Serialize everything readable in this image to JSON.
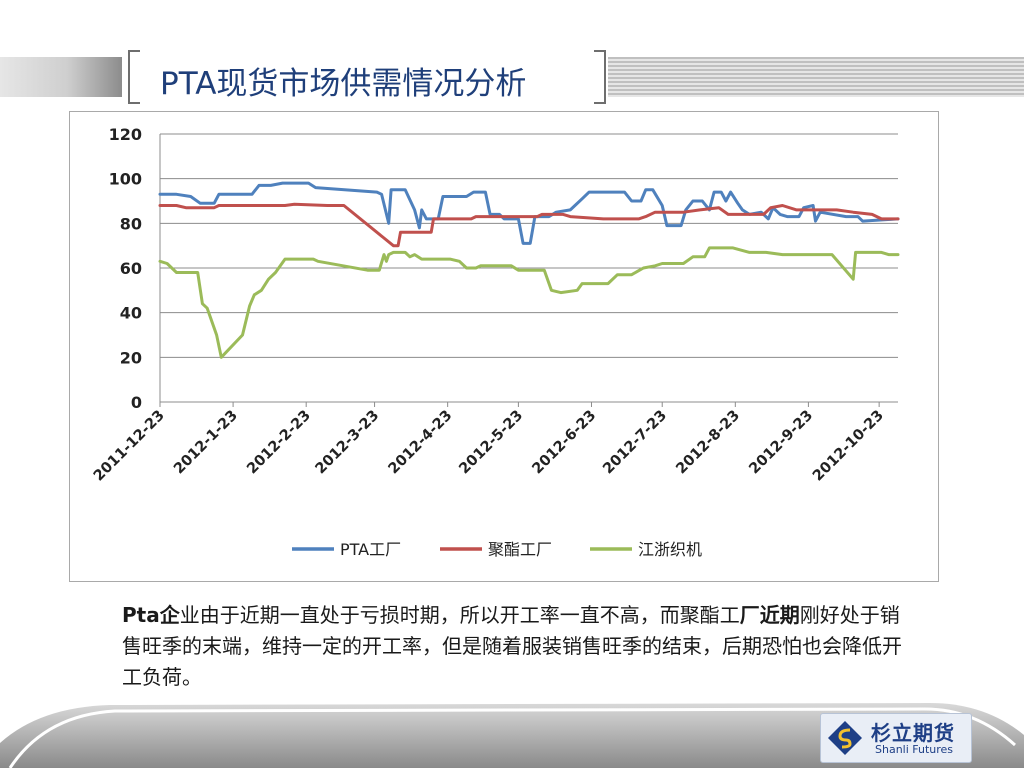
{
  "slide": {
    "title": "PTA现货市场供需情况分析",
    "paragraph": {
      "bold1": "Pta企",
      "text1": "业由于近期一直处于亏损时期，所以开工率一直不高，而聚酯工",
      "bold2": "厂近期",
      "text2": "刚好处于销售旺季的末端，维持一定的开工率，但是随着服装销售旺季的结束，后期恐怕也会降低开工负荷。"
    },
    "logo": {
      "cn": "杉立期货",
      "en": "Shanli Futures"
    }
  },
  "colors": {
    "pta": "#4f81bd",
    "polyester": "#c0504d",
    "weaving": "#9bbb59",
    "title": "#1f3f7a"
  },
  "chart_data": {
    "type": "line",
    "title": "",
    "xlabel": "",
    "ylabel": "",
    "ylim": [
      0,
      120
    ],
    "yticks": [
      0,
      20,
      40,
      60,
      80,
      100,
      120
    ],
    "xlim": [
      "2011-12-23",
      "2012-10-31"
    ],
    "xtick_labels": [
      "2011-12-23",
      "2012-1-23",
      "2012-2-23",
      "2012-3-23",
      "2012-4-23",
      "2012-5-23",
      "2012-6-23",
      "2012-7-23",
      "2012-8-23",
      "2012-9-23",
      "2012-10-23"
    ],
    "grid": "horizontal",
    "legend": "bottom",
    "series": [
      {
        "name": "PTA工厂",
        "color": "#4f81bd",
        "points": [
          [
            "2011-12-23",
            93
          ],
          [
            "2011-12-30",
            93
          ],
          [
            "2012-01-05",
            92
          ],
          [
            "2012-01-09",
            89
          ],
          [
            "2012-01-15",
            89
          ],
          [
            "2012-01-17",
            93
          ],
          [
            "2012-01-31",
            93
          ],
          [
            "2012-02-03",
            97
          ],
          [
            "2012-02-08",
            97
          ],
          [
            "2012-02-13",
            98
          ],
          [
            "2012-02-24",
            98
          ],
          [
            "2012-02-27",
            96
          ],
          [
            "2012-03-24",
            94
          ],
          [
            "2012-03-26",
            93
          ],
          [
            "2012-03-29",
            80
          ],
          [
            "2012-03-30",
            95
          ],
          [
            "2012-04-05",
            95
          ],
          [
            "2012-04-09",
            86
          ],
          [
            "2012-04-11",
            78
          ],
          [
            "2012-04-12",
            86
          ],
          [
            "2012-04-14",
            82
          ],
          [
            "2012-04-19",
            82
          ],
          [
            "2012-04-21",
            92
          ],
          [
            "2012-05-01",
            92
          ],
          [
            "2012-05-04",
            94
          ],
          [
            "2012-05-09",
            94
          ],
          [
            "2012-05-11",
            84
          ],
          [
            "2012-05-15",
            84
          ],
          [
            "2012-05-17",
            82
          ],
          [
            "2012-05-23",
            82
          ],
          [
            "2012-05-25",
            71
          ],
          [
            "2012-05-28",
            71
          ],
          [
            "2012-05-30",
            83
          ],
          [
            "2012-06-05",
            83
          ],
          [
            "2012-06-08",
            85
          ],
          [
            "2012-06-14",
            86
          ],
          [
            "2012-06-19",
            91
          ],
          [
            "2012-06-22",
            94
          ],
          [
            "2012-07-07",
            94
          ],
          [
            "2012-07-10",
            90
          ],
          [
            "2012-07-14",
            90
          ],
          [
            "2012-07-16",
            95
          ],
          [
            "2012-07-19",
            95
          ],
          [
            "2012-07-23",
            88
          ],
          [
            "2012-07-25",
            79
          ],
          [
            "2012-07-31",
            79
          ],
          [
            "2012-08-02",
            86
          ],
          [
            "2012-08-05",
            90
          ],
          [
            "2012-08-09",
            90
          ],
          [
            "2012-08-12",
            86
          ],
          [
            "2012-08-14",
            94
          ],
          [
            "2012-08-17",
            94
          ],
          [
            "2012-08-19",
            90
          ],
          [
            "2012-08-21",
            94
          ],
          [
            "2012-08-24",
            89
          ],
          [
            "2012-08-26",
            86
          ],
          [
            "2012-08-29",
            84
          ],
          [
            "2012-09-03",
            85
          ],
          [
            "2012-09-06",
            82
          ],
          [
            "2012-09-08",
            87
          ],
          [
            "2012-09-11",
            84
          ],
          [
            "2012-09-14",
            83
          ],
          [
            "2012-09-19",
            83
          ],
          [
            "2012-09-21",
            87
          ],
          [
            "2012-09-25",
            88
          ],
          [
            "2012-09-26",
            81
          ],
          [
            "2012-09-28",
            85
          ],
          [
            "2012-10-09",
            83
          ],
          [
            "2012-10-14",
            83
          ],
          [
            "2012-10-16",
            81
          ],
          [
            "2012-10-31",
            82
          ]
        ]
      },
      {
        "name": "聚酯工厂",
        "color": "#c0504d",
        "points": [
          [
            "2011-12-23",
            88
          ],
          [
            "2011-12-30",
            88
          ],
          [
            "2012-01-03",
            87
          ],
          [
            "2012-01-15",
            87
          ],
          [
            "2012-01-17",
            88
          ],
          [
            "2012-02-14",
            88
          ],
          [
            "2012-02-18",
            88.5
          ],
          [
            "2012-03-03",
            88
          ],
          [
            "2012-03-10",
            88
          ],
          [
            "2012-03-31",
            70
          ],
          [
            "2012-04-02",
            70
          ],
          [
            "2012-04-03",
            76
          ],
          [
            "2012-04-16",
            76
          ],
          [
            "2012-04-17",
            82
          ],
          [
            "2012-05-03",
            82
          ],
          [
            "2012-05-05",
            83
          ],
          [
            "2012-05-31",
            83
          ],
          [
            "2012-06-02",
            84
          ],
          [
            "2012-06-11",
            84
          ],
          [
            "2012-06-14",
            83
          ],
          [
            "2012-06-28",
            82
          ],
          [
            "2012-07-13",
            82
          ],
          [
            "2012-07-16",
            83
          ],
          [
            "2012-07-20",
            85
          ],
          [
            "2012-08-01",
            85
          ],
          [
            "2012-08-08",
            86
          ],
          [
            "2012-08-16",
            87
          ],
          [
            "2012-08-20",
            84
          ],
          [
            "2012-09-04",
            84
          ],
          [
            "2012-09-07",
            87
          ],
          [
            "2012-09-12",
            88
          ],
          [
            "2012-09-18",
            86
          ],
          [
            "2012-10-05",
            86
          ],
          [
            "2012-10-12",
            85
          ],
          [
            "2012-10-20",
            84
          ],
          [
            "2012-10-24",
            82
          ],
          [
            "2012-10-31",
            82
          ]
        ]
      },
      {
        "name": "江浙织机",
        "color": "#9bbb59",
        "points": [
          [
            "2011-12-23",
            63
          ],
          [
            "2011-12-26",
            62
          ],
          [
            "2011-12-30",
            58
          ],
          [
            "2012-01-08",
            58
          ],
          [
            "2012-01-10",
            44
          ],
          [
            "2012-01-12",
            42
          ],
          [
            "2012-01-16",
            30
          ],
          [
            "2012-01-18",
            20
          ],
          [
            "2012-01-27",
            30
          ],
          [
            "2012-01-30",
            43
          ],
          [
            "2012-02-01",
            48
          ],
          [
            "2012-02-04",
            50
          ],
          [
            "2012-02-07",
            55
          ],
          [
            "2012-02-10",
            58
          ],
          [
            "2012-02-14",
            64
          ],
          [
            "2012-02-26",
            64
          ],
          [
            "2012-02-28",
            63
          ],
          [
            "2012-03-20",
            59
          ],
          [
            "2012-03-25",
            59
          ],
          [
            "2012-03-27",
            66
          ],
          [
            "2012-03-28",
            63
          ],
          [
            "2012-03-29",
            66
          ],
          [
            "2012-03-31",
            67
          ],
          [
            "2012-04-05",
            67
          ],
          [
            "2012-04-07",
            65
          ],
          [
            "2012-04-09",
            66
          ],
          [
            "2012-04-12",
            64
          ],
          [
            "2012-04-24",
            64
          ],
          [
            "2012-04-28",
            63
          ],
          [
            "2012-05-01",
            60
          ],
          [
            "2012-05-05",
            60
          ],
          [
            "2012-05-07",
            61
          ],
          [
            "2012-05-20",
            61
          ],
          [
            "2012-05-23",
            59
          ],
          [
            "2012-06-03",
            59
          ],
          [
            "2012-06-06",
            50
          ],
          [
            "2012-06-10",
            49
          ],
          [
            "2012-06-17",
            50
          ],
          [
            "2012-06-19",
            53
          ],
          [
            "2012-06-30",
            53
          ],
          [
            "2012-07-04",
            57
          ],
          [
            "2012-07-10",
            57
          ],
          [
            "2012-07-15",
            60
          ],
          [
            "2012-07-20",
            61
          ],
          [
            "2012-07-23",
            62
          ],
          [
            "2012-08-01",
            62
          ],
          [
            "2012-08-05",
            65
          ],
          [
            "2012-08-10",
            65
          ],
          [
            "2012-08-12",
            69
          ],
          [
            "2012-08-22",
            69
          ],
          [
            "2012-08-29",
            67
          ],
          [
            "2012-09-05",
            67
          ],
          [
            "2012-09-12",
            66
          ],
          [
            "2012-10-03",
            66
          ],
          [
            "2012-10-12",
            55
          ],
          [
            "2012-10-13",
            67
          ],
          [
            "2012-10-24",
            67
          ],
          [
            "2012-10-27",
            66
          ],
          [
            "2012-10-31",
            66
          ]
        ]
      }
    ]
  }
}
